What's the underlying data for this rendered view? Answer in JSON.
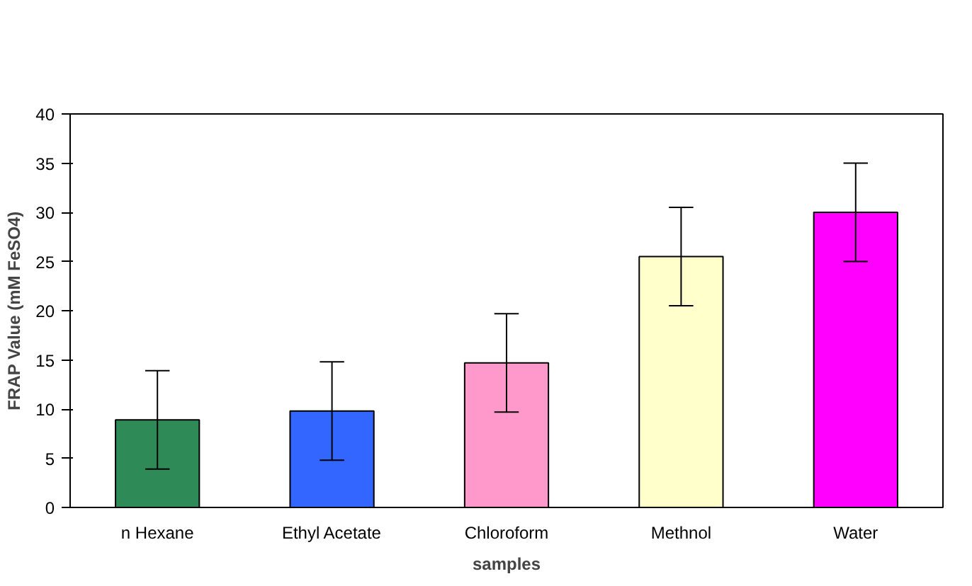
{
  "chart_data": {
    "type": "bar",
    "xlabel": "samples",
    "ylabel": "FRAP Value (mM FeSO4)",
    "categories": [
      "n Hexane",
      "Ethyl Acetate",
      "Chloroform",
      "Methnol",
      "Water"
    ],
    "values": [
      8.9,
      9.8,
      14.7,
      25.5,
      30
    ],
    "errors": [
      5,
      5,
      5,
      5,
      5
    ],
    "colors": [
      "#2e8b57",
      "#3366ff",
      "#ff99cc",
      "#ffffcc",
      "#ff00ff"
    ],
    "ylim": [
      0,
      40
    ],
    "yticks": [
      0,
      5,
      10,
      15,
      20,
      25,
      30,
      35,
      40
    ],
    "grid": false
  }
}
